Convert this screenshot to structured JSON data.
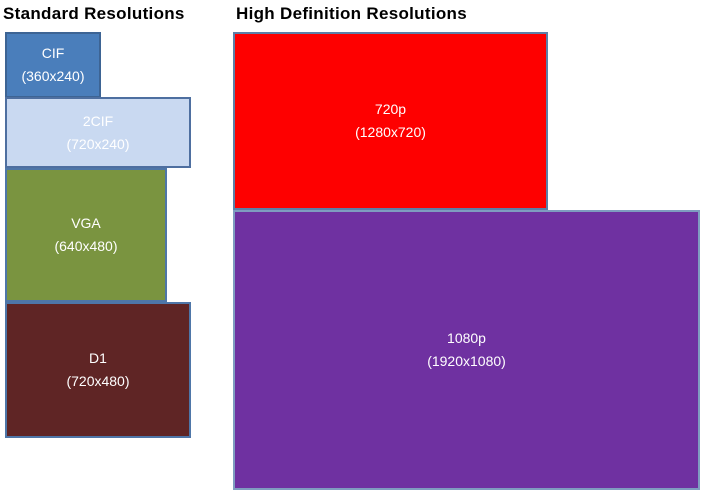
{
  "titles": {
    "standard": "Standard Resolutions",
    "high_definition": "High Definition Resolutions"
  },
  "colors": {
    "background": "#FFFFFF",
    "title_text": "#000000"
  },
  "boxes": {
    "cif": {
      "name": "CIF",
      "dimensions": "(360x240)",
      "fill": "#4A7EBB",
      "border": "#3D6494",
      "text_color": "#FFFFFF"
    },
    "cif2": {
      "name": "2CIF",
      "dimensions": "(720x240)",
      "fill": "#C9D9F1",
      "border": "#4E6FA0",
      "text_color": "#FFFFFF"
    },
    "vga": {
      "name": "VGA",
      "dimensions": "(640x480)",
      "fill": "#7A9440",
      "border": "#4E76A8",
      "text_color": "#FFFFFF"
    },
    "d1": {
      "name": "D1",
      "dimensions": "(720x480)",
      "fill": "#5F2525",
      "border": "#4E76A8",
      "text_color": "#FFFFFF"
    },
    "p720": {
      "name": "720p",
      "dimensions": "(1280x720)",
      "fill": "#FE0000",
      "border": "#5C7FA8",
      "text_color": "#FFFFFF"
    },
    "p1080": {
      "name": "1080p",
      "dimensions": "(1920x1080)",
      "fill": "#6F31A1",
      "border": "#7F9CC0",
      "text_color": "#FFFFFF"
    }
  }
}
